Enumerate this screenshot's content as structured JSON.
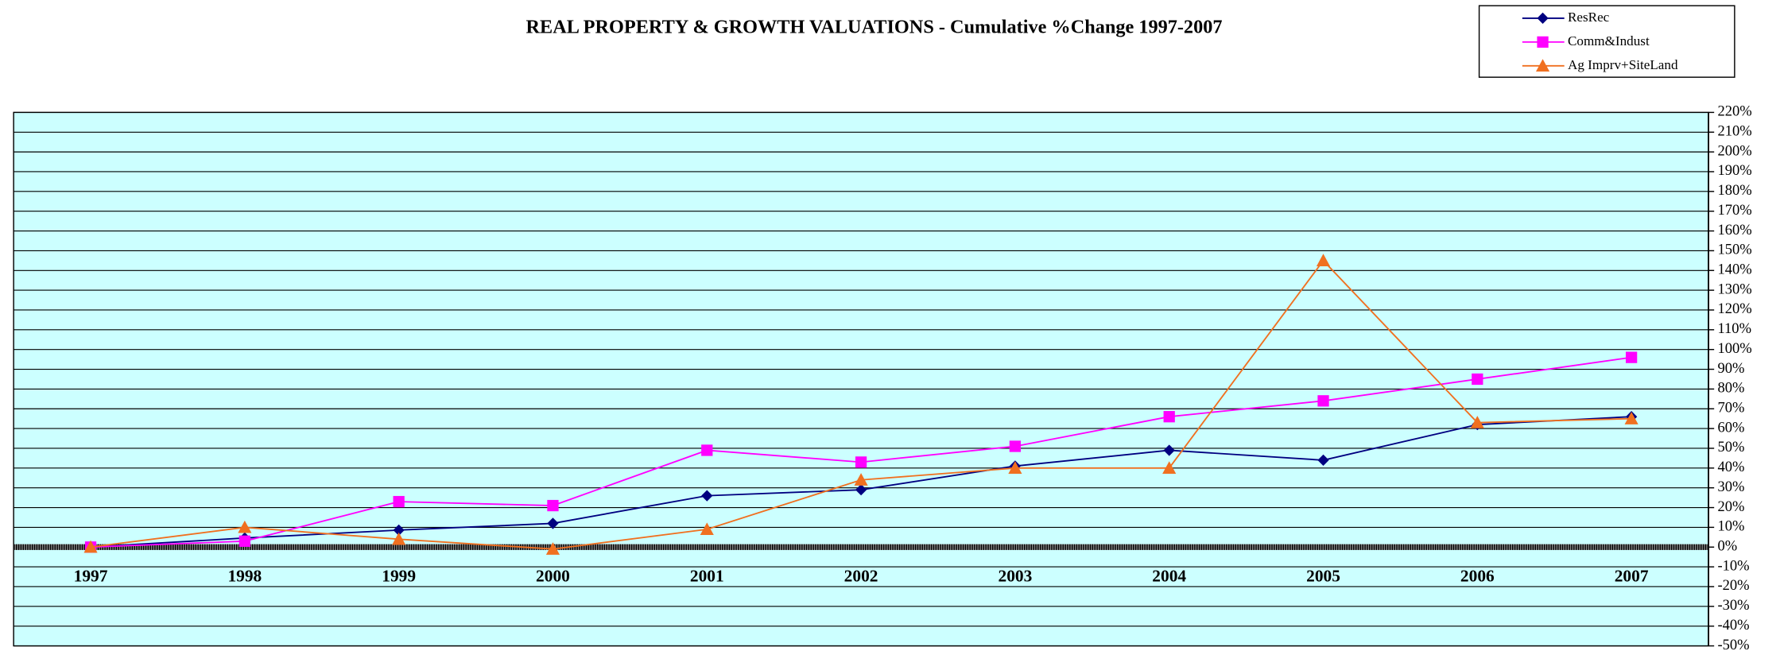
{
  "chart_data": {
    "type": "line",
    "title": "REAL PROPERTY & GROWTH VALUATIONS - Cumulative %Change 1997-2007",
    "categories": [
      "1997",
      "1998",
      "1999",
      "2000",
      "2001",
      "2002",
      "2003",
      "2004",
      "2005",
      "2006",
      "2007"
    ],
    "series": [
      {
        "name": "ResRec",
        "color": "#000080",
        "marker": "diamond",
        "values": [
          0,
          4.6,
          8.6,
          12,
          26,
          29,
          41,
          49,
          44,
          62,
          66
        ]
      },
      {
        "name": "Comm&Indust",
        "color": "#ff00ff",
        "marker": "square",
        "values": [
          0,
          3,
          23,
          21,
          49,
          43,
          51,
          66,
          74,
          85,
          96
        ]
      },
      {
        "name": "Ag Imprv+SiteLand",
        "color": "#f07020",
        "marker": "triangle",
        "values": [
          0,
          10,
          4,
          -1,
          9,
          34,
          40,
          40,
          145,
          63,
          65
        ]
      }
    ],
    "ylim": [
      -50,
      220
    ],
    "yticks": [
      {
        "value": -50,
        "label": "-50%"
      },
      {
        "value": -40,
        "label": "-40%"
      },
      {
        "value": -30,
        "label": "-30%"
      },
      {
        "value": -20,
        "label": "-20%"
      },
      {
        "value": -10,
        "label": "-10%"
      },
      {
        "value": 0,
        "label": "0%"
      },
      {
        "value": 10,
        "label": "10%"
      },
      {
        "value": 20,
        "label": "20%"
      },
      {
        "value": 30,
        "label": "30%"
      },
      {
        "value": 40,
        "label": "40%"
      },
      {
        "value": 50,
        "label": "50%"
      },
      {
        "value": 60,
        "label": "60%"
      },
      {
        "value": 70,
        "label": "70%"
      },
      {
        "value": 80,
        "label": "80%"
      },
      {
        "value": 90,
        "label": "90%"
      },
      {
        "value": 100,
        "label": "100%"
      },
      {
        "value": 110,
        "label": "110%"
      },
      {
        "value": 120,
        "label": "120%"
      },
      {
        "value": 130,
        "label": "130%"
      },
      {
        "value": 140,
        "label": "140%"
      },
      {
        "value": 150,
        "label": "150%"
      },
      {
        "value": 160,
        "label": "160%"
      },
      {
        "value": 170,
        "label": "170%"
      },
      {
        "value": 180,
        "label": "180%"
      },
      {
        "value": 190,
        "label": "190%"
      },
      {
        "value": 200,
        "label": "200%"
      },
      {
        "value": 210,
        "label": "210%"
      },
      {
        "value": 220,
        "label": "220%"
      }
    ],
    "grid": true,
    "background": "#ccffff",
    "legend": "top-right"
  }
}
